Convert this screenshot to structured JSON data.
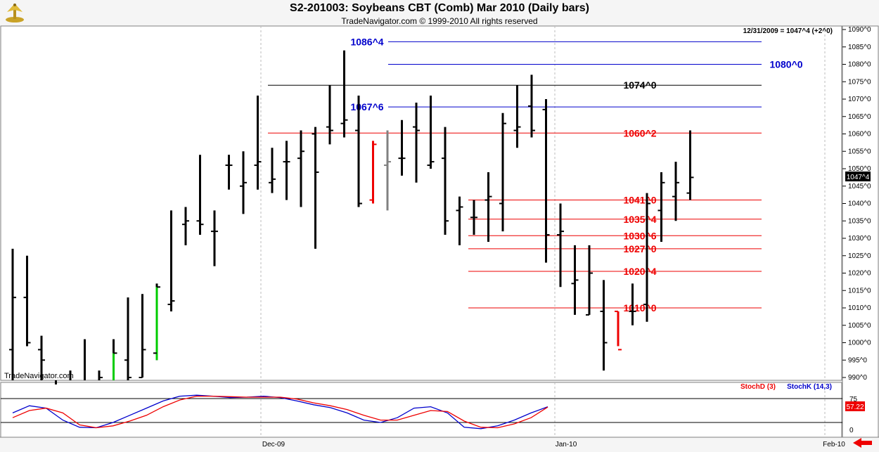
{
  "header": {
    "title": "S2-201003:  Soybeans CBT (Comb) Mar 2010  (Daily bars)",
    "subtitle": "TradeNavigator.com © 1999-2010 All rights reserved",
    "last_quote": "12/31/2009 = 1047^4 (+2^0)",
    "watermark": "TradeNavigator.com"
  },
  "colors": {
    "up": "#000000",
    "blue_level": "#0000cc",
    "red_level": "#ee0000",
    "grey_bar": "#808080",
    "green_bar": "#00cc00",
    "stochK": "#0000cc",
    "stochD": "#ee0000"
  },
  "chart_data": [
    {
      "type": "ohlc",
      "ylim": [
        990,
        1092
      ],
      "y_ticks": [
        {
          "v": 990,
          "l": "990^0"
        },
        {
          "v": 995,
          "l": "995^0"
        },
        {
          "v": 1000,
          "l": "1000^0"
        },
        {
          "v": 1005,
          "l": "1005^0"
        },
        {
          "v": 1010,
          "l": "1010^0"
        },
        {
          "v": 1015,
          "l": "1015^0"
        },
        {
          "v": 1020,
          "l": "1020^0"
        },
        {
          "v": 1025,
          "l": "1025^0"
        },
        {
          "v": 1030,
          "l": "1030^0"
        },
        {
          "v": 1035,
          "l": "1035^0"
        },
        {
          "v": 1040,
          "l": "1040^0"
        },
        {
          "v": 1045,
          "l": "1045^0"
        },
        {
          "v": 1050,
          "l": "1050^0"
        },
        {
          "v": 1055,
          "l": "1055^0"
        },
        {
          "v": 1060,
          "l": "1060^0"
        },
        {
          "v": 1065,
          "l": "1065^0"
        },
        {
          "v": 1070,
          "l": "1070^0"
        },
        {
          "v": 1075,
          "l": "1075^0"
        },
        {
          "v": 1080,
          "l": "1080^0"
        },
        {
          "v": 1085,
          "l": "1085^0"
        },
        {
          "v": 1090,
          "l": "1090^0"
        }
      ],
      "x_labels": [
        "Dec-09",
        "Jan-10",
        "Feb-10"
      ],
      "last_price_label": "1047^4",
      "levels": [
        {
          "label": "1086^4",
          "value": 1086.5,
          "color": "blue"
        },
        {
          "label": "1080^0",
          "value": 1080,
          "color": "blue"
        },
        {
          "label": "1074^0",
          "value": 1074,
          "color": "black"
        },
        {
          "label": "1067^6",
          "value": 1067.75,
          "color": "blue"
        },
        {
          "label": "1060^2",
          "value": 1060.25,
          "color": "red"
        },
        {
          "label": "1041^0",
          "value": 1041,
          "color": "red"
        },
        {
          "label": "1035^4",
          "value": 1035.5,
          "color": "red"
        },
        {
          "label": "1030^6",
          "value": 1030.75,
          "color": "red"
        },
        {
          "label": "1027^0",
          "value": 1027,
          "color": "red"
        },
        {
          "label": "1020^4",
          "value": 1020.5,
          "color": "red"
        },
        {
          "label": "1010^0",
          "value": 1010,
          "color": "red"
        }
      ],
      "bars": [
        [
          1027,
          985,
          998,
          1013,
          "b"
        ],
        [
          1025,
          999,
          1013,
          1000,
          "b"
        ],
        [
          1002,
          985,
          998,
          995,
          "b"
        ],
        [
          988,
          975,
          980,
          985,
          "b"
        ],
        [
          992,
          978,
          983,
          988,
          "b"
        ],
        [
          1001,
          978,
          982,
          985,
          "b"
        ],
        [
          992,
          978,
          988,
          990,
          "b"
        ],
        [
          1001,
          978,
          987,
          997,
          "g"
        ],
        [
          1013,
          980,
          995,
          990,
          "b"
        ],
        [
          1014,
          990,
          990,
          998,
          "b"
        ],
        [
          1017,
          995,
          997,
          1016,
          "g"
        ],
        [
          1038,
          1009,
          1011,
          1012,
          "b"
        ],
        [
          1039,
          1028,
          1034,
          1035,
          "b"
        ],
        [
          1054,
          1031,
          1035,
          1034,
          "b"
        ],
        [
          1038,
          1022,
          1032,
          1032,
          "b"
        ],
        [
          1054,
          1044,
          1051,
          1051,
          "b"
        ],
        [
          1055,
          1037,
          1045,
          1046,
          "b"
        ],
        [
          1071,
          1044,
          1051,
          1052,
          "b"
        ],
        [
          1056,
          1043,
          1046,
          1047,
          "b"
        ],
        [
          1058,
          1041,
          1052,
          1052,
          "b"
        ],
        [
          1061,
          1039,
          1053,
          1055,
          "b"
        ],
        [
          1062,
          1027,
          1060,
          1049,
          "b"
        ],
        [
          1074,
          1057,
          1062,
          1061,
          "b"
        ],
        [
          1084,
          1059,
          1063,
          1064,
          "b"
        ],
        [
          1071,
          1039,
          1061,
          1040,
          "b"
        ],
        [
          1058,
          1040,
          1041,
          1057,
          "r"
        ],
        [
          1061,
          1038,
          1051,
          1052,
          "x"
        ],
        [
          1064,
          1048,
          1053,
          1053,
          "b"
        ],
        [
          1069,
          1046,
          1062,
          1061,
          "b"
        ],
        [
          1071,
          1050,
          1051,
          1052,
          "b"
        ],
        [
          1062,
          1031,
          1053,
          1035,
          "b"
        ],
        [
          1042,
          1028,
          1038,
          1039,
          "b"
        ],
        [
          1041,
          1031,
          1036,
          1036,
          "b"
        ],
        [
          1049,
          1029,
          1041,
          1042,
          "b"
        ],
        [
          1066,
          1032,
          1040,
          1063,
          "b"
        ],
        [
          1074,
          1056,
          1061,
          1062,
          "b"
        ],
        [
          1077,
          1059,
          1068,
          1061,
          "b"
        ],
        [
          1070,
          1023,
          1067,
          1031,
          "b"
        ],
        [
          1040,
          1016,
          1031,
          1032,
          "b"
        ],
        [
          1028,
          1008,
          1017,
          1018,
          "b"
        ],
        [
          1028,
          1008,
          1008,
          1020,
          "b"
        ],
        [
          1018,
          992,
          1009,
          1000,
          "b"
        ],
        [
          1009,
          999,
          1009,
          998,
          "r"
        ],
        [
          1017,
          1005,
          1009,
          1009,
          "b"
        ],
        [
          1043,
          1006,
          1011,
          1040,
          "b"
        ],
        [
          1049,
          1029,
          1038,
          1046,
          "b"
        ],
        [
          1052,
          1035,
          1042,
          1046,
          "b"
        ],
        [
          1061,
          1041,
          1043,
          1047.5,
          "b"
        ]
      ]
    },
    {
      "type": "line",
      "title": "",
      "legend": [
        "StochD (3)",
        "StochK (14,3)"
      ],
      "ylim": [
        0,
        100
      ],
      "y_ticks": [
        {
          "v": 75,
          "l": "75"
        },
        {
          "v": 0,
          "l": "0"
        }
      ],
      "value_label": "57.22",
      "series": [
        {
          "name": "StochK (14,3)",
          "color": "blue",
          "values": [
            45,
            60,
            55,
            30,
            15,
            14,
            25,
            40,
            55,
            70,
            80,
            82,
            80,
            77,
            78,
            80,
            77,
            70,
            62,
            56,
            45,
            30,
            25,
            35,
            55,
            58,
            45,
            15,
            12,
            18,
            30,
            45,
            58
          ]
        },
        {
          "name": "StochD (3)",
          "color": "red",
          "values": [
            35,
            50,
            55,
            45,
            20,
            14,
            18,
            28,
            40,
            58,
            72,
            80,
            80,
            79,
            78,
            78,
            78,
            74,
            66,
            60,
            52,
            40,
            30,
            30,
            40,
            50,
            48,
            28,
            15,
            14,
            22,
            35,
            57.22
          ]
        }
      ]
    }
  ]
}
